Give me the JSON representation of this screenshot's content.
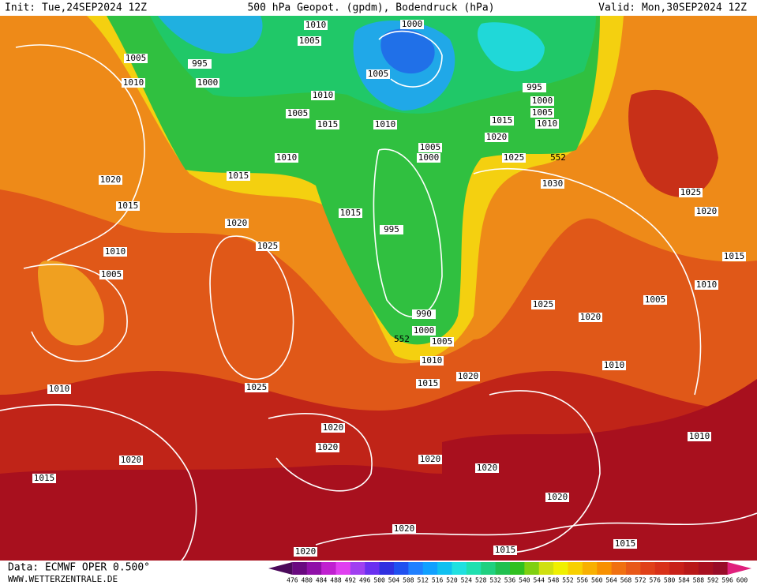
{
  "header": {
    "init": "Init: Tue,24SEP2024 12Z",
    "title": "500 hPa Geopot. (gpdm), Bodendruck (hPa)",
    "valid": "Valid: Mon,30SEP2024 12Z"
  },
  "isobar_labels": [
    "1010",
    "1005",
    "1000",
    "1005",
    "995",
    "1000",
    "1005",
    "995",
    "1010",
    "1010",
    "1000",
    "1005",
    "1015",
    "1010",
    "1015",
    "1005",
    "1010",
    "1020",
    "1005",
    "1000",
    "1025",
    "1010",
    "1015",
    "1020",
    "1030",
    "1025",
    "1015",
    "1015",
    "1020",
    "1020",
    "995",
    "1025",
    "1010",
    "1015",
    "1005",
    "1010",
    "1005",
    "1025",
    "990",
    "1020",
    "1000",
    "1005",
    "1010",
    "1010",
    "1020",
    "1015",
    "1010",
    "1025",
    "1020",
    "1010",
    "1020",
    "1020",
    "1020",
    "1020",
    "1015",
    "1020",
    "1020",
    "1015",
    "1015",
    "1020"
  ],
  "contour_labels": [
    "552",
    "552"
  ],
  "colorbar": {
    "labels": [
      476,
      480,
      484,
      488,
      492,
      496,
      500,
      504,
      508,
      512,
      516,
      520,
      524,
      528,
      532,
      536,
      540,
      544,
      548,
      552,
      556,
      560,
      564,
      568,
      572,
      576,
      580,
      584,
      588,
      592,
      596,
      600
    ],
    "colors": [
      "#4b0a5a",
      "#6a0a80",
      "#9010a8",
      "#c020d0",
      "#e040f0",
      "#a040f0",
      "#6a30f0",
      "#3030e0",
      "#2050f0",
      "#2080ff",
      "#10a0ff",
      "#10c0f0",
      "#20e0e0",
      "#20e0b0",
      "#20d080",
      "#20c050",
      "#30c020",
      "#80d010",
      "#d0e010",
      "#f0f000",
      "#f8d000",
      "#f8b000",
      "#f89000",
      "#f07010",
      "#e85818",
      "#e04018",
      "#d83018",
      "#c82018",
      "#b81818",
      "#a81020",
      "#980c28",
      "#e0207c"
    ]
  },
  "footer": {
    "data": "Data: ECMWF OPER 0.500°",
    "site": "WWW.WETTERZENTRALE.DE"
  }
}
